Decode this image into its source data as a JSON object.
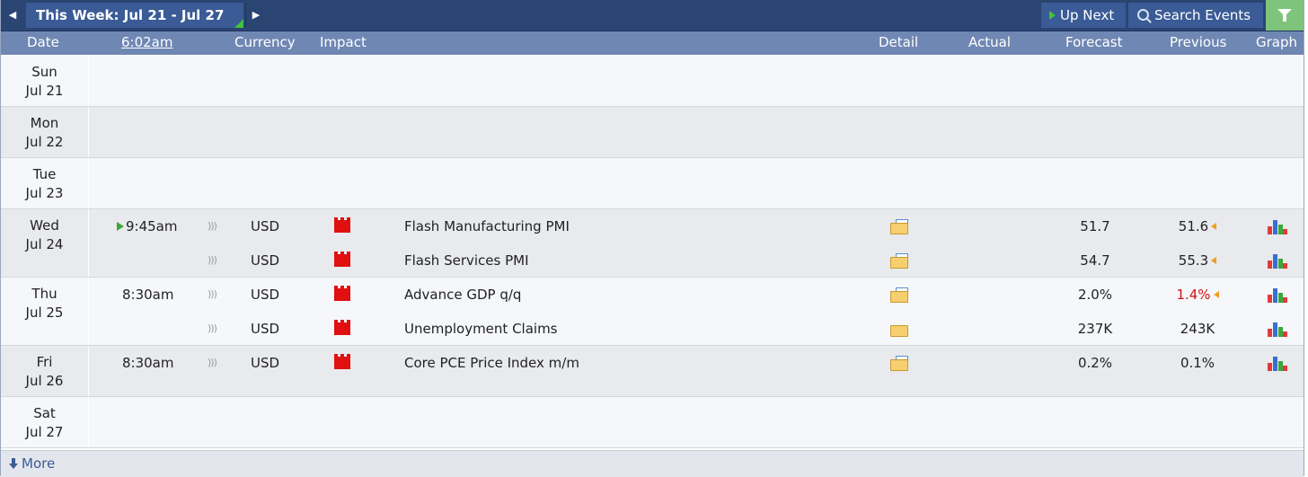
{
  "toolbar": {
    "week_label": "This Week: Jul 21 - Jul 27",
    "up_next": "Up Next",
    "search_events": "Search Events",
    "prev_icon": "chevron-left-icon",
    "next_icon": "chevron-right-icon",
    "filter_icon": "funnel-icon"
  },
  "header": {
    "date": "Date",
    "time": "6:02am",
    "currency": "Currency",
    "impact": "Impact",
    "detail": "Detail",
    "actual": "Actual",
    "forecast": "Forecast",
    "previous": "Previous",
    "graph": "Graph"
  },
  "days": [
    {
      "dow": "Sun",
      "date": "Jul 21",
      "events": []
    },
    {
      "dow": "Mon",
      "date": "Jul 22",
      "events": []
    },
    {
      "dow": "Tue",
      "date": "Jul 23",
      "events": []
    },
    {
      "dow": "Wed",
      "date": "Jul 24",
      "events": [
        {
          "time": "9:45am",
          "up_next": true,
          "currency": "USD",
          "impact": "high",
          "title": "Flash Manufacturing PMI",
          "actual": "",
          "forecast": "51.7",
          "previous": "51.6",
          "revised": true,
          "previous_color": "#222222"
        },
        {
          "time": "",
          "up_next": false,
          "currency": "USD",
          "impact": "high",
          "title": "Flash Services PMI",
          "actual": "",
          "forecast": "54.7",
          "previous": "55.3",
          "revised": true,
          "previous_color": "#222222"
        }
      ]
    },
    {
      "dow": "Thu",
      "date": "Jul 25",
      "events": [
        {
          "time": "8:30am",
          "up_next": false,
          "currency": "USD",
          "impact": "high",
          "title": "Advance GDP q/q",
          "actual": "",
          "forecast": "2.0%",
          "previous": "1.4%",
          "revised": true,
          "previous_color": "#d41010"
        },
        {
          "time": "",
          "up_next": false,
          "currency": "USD",
          "impact": "high",
          "title": "Unemployment Claims",
          "actual": "",
          "forecast": "237K",
          "previous": "243K",
          "revised": false,
          "previous_color": "#222222"
        }
      ]
    },
    {
      "dow": "Fri",
      "date": "Jul 26",
      "events": [
        {
          "time": "8:30am",
          "up_next": false,
          "currency": "USD",
          "impact": "high",
          "title": "Core PCE Price Index m/m",
          "actual": "",
          "forecast": "0.2%",
          "previous": "0.1%",
          "revised": false,
          "previous_color": "#222222"
        }
      ]
    },
    {
      "dow": "Sat",
      "date": "Jul 27",
      "events": []
    }
  ],
  "footer": {
    "more": "More"
  },
  "colors": {
    "impact_high": "#e01010",
    "revised": "#f0a020",
    "up_next": "#3ec43e"
  }
}
